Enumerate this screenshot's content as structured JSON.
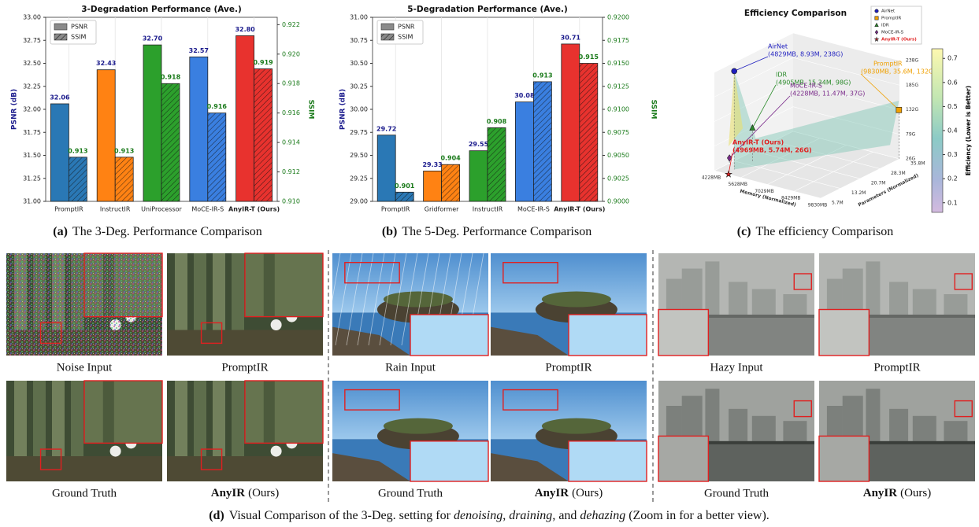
{
  "chart_data": [
    {
      "type": "bar",
      "title": "3-Degradation Performance (Ave.)",
      "ylabel": "PSNR (dB)",
      "y2label": "SSIM",
      "categories": [
        "PromptIR",
        "InstructIR",
        "UniProcessor",
        "MoCE-IR-S",
        "AnyIR-T (Ours)"
      ],
      "category_colors": [
        "#222222",
        "#222222",
        "#222222",
        "#222222",
        "#e8262a"
      ],
      "colors": [
        "#2a78b5",
        "#ff8213",
        "#2ca02c",
        "#3a7fe0",
        "#e8322e"
      ],
      "series": [
        {
          "name": "PSNR",
          "axis": "y",
          "values": [
            32.06,
            32.43,
            32.7,
            32.57,
            32.8
          ],
          "value_labels": [
            "32.06",
            "32.43",
            "32.70",
            "32.57",
            "32.80"
          ],
          "label_color": "#1a1a8c"
        },
        {
          "name": "SSIM",
          "axis": "y2",
          "hatch": true,
          "values": [
            0.913,
            0.913,
            0.918,
            0.916,
            0.919
          ],
          "value_labels": [
            "0.913",
            "0.913",
            "0.918",
            "0.916",
            "0.919"
          ],
          "label_color": "#1a7a1a"
        }
      ],
      "ylim": [
        31.0,
        33.0
      ],
      "yticks": [
        {
          "value": 31.0,
          "label": "31.00"
        },
        {
          "value": 31.25,
          "label": "31.25"
        },
        {
          "value": 31.5,
          "label": "31.50"
        },
        {
          "value": 31.75,
          "label": "31.75"
        },
        {
          "value": 32.0,
          "label": "32.00"
        },
        {
          "value": 32.25,
          "label": "32.25"
        },
        {
          "value": 32.5,
          "label": "32.50"
        },
        {
          "value": 32.75,
          "label": "32.75"
        },
        {
          "value": 33.0,
          "label": "33.00"
        }
      ],
      "y2lim": [
        0.91,
        0.9225
      ],
      "y2ticks": [
        {
          "value": 0.91,
          "label": "0.910"
        },
        {
          "value": 0.912,
          "label": "0.912"
        },
        {
          "value": 0.914,
          "label": "0.914"
        },
        {
          "value": 0.916,
          "label": "0.916"
        },
        {
          "value": 0.918,
          "label": "0.918"
        },
        {
          "value": 0.92,
          "label": "0.920"
        },
        {
          "value": 0.922,
          "label": "0.922"
        }
      ]
    },
    {
      "type": "bar",
      "title": "5-Degradation Performance (Ave.)",
      "ylabel": "PSNR (dB)",
      "y2label": "SSIM",
      "categories": [
        "PromptIR",
        "Gridformer",
        "InstructIR",
        "MoCE-IR-S",
        "AnyIR-T (Ours)"
      ],
      "category_colors": [
        "#222222",
        "#222222",
        "#222222",
        "#222222",
        "#e8262a"
      ],
      "colors": [
        "#2a78b5",
        "#ff8213",
        "#2ca02c",
        "#3a7fe0",
        "#e8322e"
      ],
      "series": [
        {
          "name": "PSNR",
          "axis": "y",
          "values": [
            29.72,
            29.33,
            29.55,
            30.08,
            30.71
          ],
          "value_labels": [
            "29.72",
            "29.33",
            "29.55",
            "30.08",
            "30.71"
          ],
          "label_color": "#1a1a8c"
        },
        {
          "name": "SSIM",
          "axis": "y2",
          "hatch": true,
          "values": [
            0.901,
            0.904,
            0.908,
            0.913,
            0.915
          ],
          "value_labels": [
            "0.901",
            "0.904",
            "0.908",
            "0.913",
            "0.915"
          ],
          "label_color": "#1a7a1a"
        }
      ],
      "ylim": [
        29.0,
        31.0
      ],
      "yticks": [
        {
          "value": 29.0,
          "label": "29.00"
        },
        {
          "value": 29.25,
          "label": "29.25"
        },
        {
          "value": 29.5,
          "label": "29.50"
        },
        {
          "value": 29.75,
          "label": "29.75"
        },
        {
          "value": 30.0,
          "label": "30.00"
        },
        {
          "value": 30.25,
          "label": "30.25"
        },
        {
          "value": 30.5,
          "label": "30.50"
        },
        {
          "value": 30.75,
          "label": "30.75"
        },
        {
          "value": 31.0,
          "label": "31.00"
        }
      ],
      "y2lim": [
        0.9,
        0.92
      ],
      "y2ticks": [
        {
          "value": 0.9,
          "label": "0.9000"
        },
        {
          "value": 0.9025,
          "label": "0.9025"
        },
        {
          "value": 0.905,
          "label": "0.9050"
        },
        {
          "value": 0.9075,
          "label": "0.9075"
        },
        {
          "value": 0.91,
          "label": "0.9100"
        },
        {
          "value": 0.9125,
          "label": "0.9125"
        },
        {
          "value": 0.915,
          "label": "0.9150"
        },
        {
          "value": 0.9175,
          "label": "0.9175"
        },
        {
          "value": 0.92,
          "label": "0.9200"
        }
      ]
    },
    {
      "type": "scatter3d",
      "title": "Efficiency Comparison",
      "xlabel": "Memory (Normalized)",
      "ylabel": "Parameters (Normalized)",
      "colorbar_label": "Efficiency (Lower is Better)",
      "xlim": [
        4228,
        9830
      ],
      "xticks": [
        {
          "value": 4228,
          "label": "4228MB"
        },
        {
          "value": 5628,
          "label": "5628MB"
        },
        {
          "value": 7029,
          "label": "7029MB"
        },
        {
          "value": 8429,
          "label": "8429MB"
        },
        {
          "value": 9830,
          "label": "9830MB"
        }
      ],
      "ylim": [
        5.7,
        35.8
      ],
      "yticks": [
        {
          "value": 5.7,
          "label": "5.7M"
        },
        {
          "value": 13.2,
          "label": "13.2M"
        },
        {
          "value": 20.7,
          "label": "20.7M"
        },
        {
          "value": 28.3,
          "label": "28.3M"
        },
        {
          "value": 35.8,
          "label": "35.8M"
        }
      ],
      "zlim": [
        26,
        238
      ],
      "zticks": [
        {
          "value": 26,
          "label": "26G"
        },
        {
          "value": 79,
          "label": "79G"
        },
        {
          "value": 132,
          "label": "132G"
        },
        {
          "value": 185,
          "label": "185G"
        },
        {
          "value": 238,
          "label": "238G"
        }
      ],
      "clim": [
        0.06,
        0.74
      ],
      "cticks": [
        0.1,
        0.2,
        0.3,
        0.4,
        0.5,
        0.6,
        0.7
      ],
      "series": [
        {
          "name": "AirNet",
          "color": "#1f1fbf",
          "marker": "circle",
          "x": [
            4829
          ],
          "y": [
            8.93
          ],
          "z": [
            238
          ],
          "annotation": [
            "AirNet",
            "(4829MB, 8.93M, 238G)"
          ]
        },
        {
          "name": "PromptIR",
          "color": "#f0a000",
          "marker": "square",
          "x": [
            9830
          ],
          "y": [
            35.6
          ],
          "z": [
            132
          ],
          "annotation": [
            "PromptIR",
            "(9830MB, 35.6M, 132G)"
          ]
        },
        {
          "name": "IDR",
          "color": "#2a8a2a",
          "marker": "triangle",
          "x": [
            4905
          ],
          "y": [
            15.34
          ],
          "z": [
            98
          ],
          "annotation": [
            "IDR",
            "(4905MB, 15.34M, 98G)"
          ]
        },
        {
          "name": "MoCE-IR-S",
          "color": "#7a2a8a",
          "marker": "diamond",
          "x": [
            4228
          ],
          "y": [
            11.47
          ],
          "z": [
            37
          ],
          "annotation": [
            "MoCE-IR-S",
            "(4228MB, 11.47M, 37G)"
          ]
        },
        {
          "name": "AnyIR-T (Ours)",
          "color": "#e02020",
          "marker": "star",
          "x": [
            4969
          ],
          "y": [
            5.74
          ],
          "z": [
            26
          ],
          "annotation": [
            "AnyIR-T (Ours)",
            "(4969MB, 5.74M, 26G)"
          ]
        }
      ]
    }
  ],
  "captions": [
    {
      "label": "(a)",
      "text": "The 3-Deg. Performance Comparison"
    },
    {
      "label": "(b)",
      "text": "The 5-Deg. Performance Comparison"
    },
    {
      "label": "(c)",
      "text": "The efficiency Comparison"
    }
  ],
  "panel_d": {
    "rows": [
      [
        "Noise Input",
        "PromptIR",
        "Rain Input",
        "PromptIR",
        "Hazy Input",
        "PromptIR"
      ],
      [
        "Ground Truth",
        {
          "name": "AnyIR",
          "suffix": "(Ours)"
        },
        "Ground Truth",
        {
          "name": "AnyIR",
          "suffix": "(Ours)"
        },
        "Ground Truth",
        {
          "name": "AnyIR",
          "suffix": "(Ours)"
        }
      ]
    ],
    "caption": {
      "label": "(d)",
      "parts": [
        "Visual Comparison of the 3-Deg. setting for ",
        "denoising",
        ", ",
        "draining",
        ", and ",
        "dehazing",
        " (Zoom in for a better view)."
      ]
    }
  }
}
